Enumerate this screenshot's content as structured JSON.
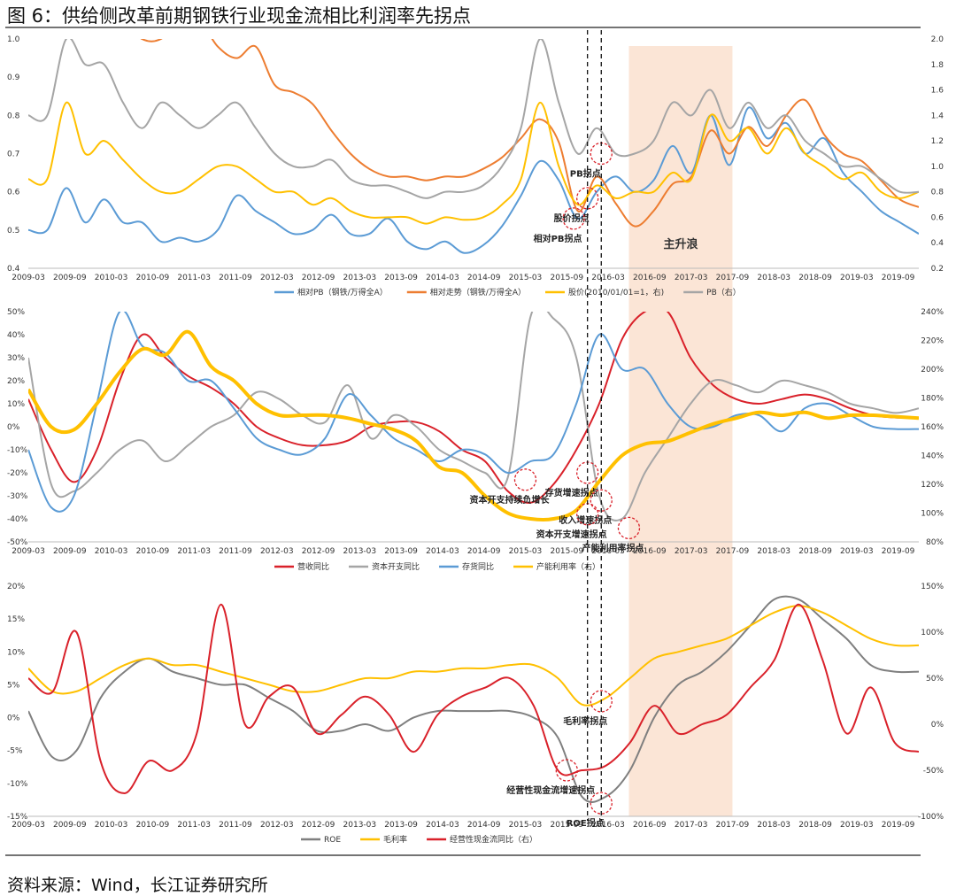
{
  "title": "图 6：供给侧改革前期钢铁行业现金流相比利润率先拐点",
  "source": "资料来源：Wind，长江证券研究所",
  "colors": {
    "blue": "#5B9BD5",
    "orange": "#ED7D31",
    "yellow": "#FFC000",
    "gray": "#A5A5A5",
    "red": "#D9212A",
    "darkgray": "#7F7F7F",
    "band": "#FBE5D6"
  },
  "x_ticks": [
    "2009-03",
    "2009-09",
    "2010-03",
    "2010-09",
    "2011-03",
    "2011-09",
    "2012-03",
    "2012-09",
    "2013-03",
    "2013-09",
    "2014-03",
    "2014-09",
    "2015-03",
    "2015-09",
    "2016-03",
    "2016-09",
    "2017-03",
    "2017-09",
    "2018-03",
    "2018-09",
    "2019-03",
    "2019-09"
  ],
  "highlight": {
    "label": "主升浪",
    "from": "2016-06",
    "to": "2017-09"
  },
  "vlines": [
    "2015-12",
    "2016-02"
  ],
  "chart_data": [
    {
      "type": "line",
      "ylim": [
        0.4,
        1.0
      ],
      "y2lim": [
        0.2,
        2.0
      ],
      "yticks": [
        "1.0",
        "0.9",
        "0.8",
        "0.7",
        "0.6",
        "0.5",
        "0.4"
      ],
      "y2ticks": [
        "2.0",
        "1.8",
        "1.6",
        "1.4",
        "1.2",
        "1.0",
        "0.8",
        "0.6",
        "0.4",
        "0.2"
      ],
      "series": [
        {
          "name": "相对PB（钢铁/万得全A）",
          "color": "blue",
          "axis": "left",
          "values": [
            0.5,
            0.5,
            0.61,
            0.52,
            0.58,
            0.52,
            0.52,
            0.47,
            0.48,
            0.47,
            0.5,
            0.59,
            0.55,
            0.52,
            0.49,
            0.5,
            0.54,
            0.49,
            0.49,
            0.53,
            0.47,
            0.45,
            0.47,
            0.44,
            0.46,
            0.51,
            0.59,
            0.68,
            0.63,
            0.53,
            0.6,
            0.64,
            0.6,
            0.63,
            0.72,
            0.65,
            0.8,
            0.67,
            0.82,
            0.74,
            0.78,
            0.7,
            0.74,
            0.65,
            0.6,
            0.55,
            0.52,
            0.49
          ]
        },
        {
          "name": "相对走势（钢铁/万得全A）",
          "color": "orange",
          "axis": "left",
          "values": [
            1.05,
            1.05,
            1.05,
            1.05,
            1.05,
            1.05,
            1.0,
            1.0,
            1.05,
            1.05,
            0.98,
            0.95,
            0.98,
            0.88,
            0.86,
            0.83,
            0.76,
            0.7,
            0.66,
            0.64,
            0.64,
            0.63,
            0.64,
            0.64,
            0.66,
            0.69,
            0.74,
            0.79,
            0.73,
            0.55,
            0.64,
            0.57,
            0.51,
            0.55,
            0.62,
            0.64,
            0.76,
            0.7,
            0.77,
            0.72,
            0.8,
            0.84,
            0.75,
            0.7,
            0.68,
            0.63,
            0.58,
            0.56
          ]
        },
        {
          "name": "股价(2010/01/01=1，右)",
          "color": "yellow",
          "axis": "right",
          "values": [
            0.9,
            0.9,
            1.5,
            1.1,
            1.2,
            1.05,
            0.9,
            0.8,
            0.8,
            0.9,
            1.0,
            1.0,
            0.9,
            0.8,
            0.8,
            0.7,
            0.75,
            0.65,
            0.6,
            0.6,
            0.6,
            0.55,
            0.6,
            0.58,
            0.6,
            0.7,
            0.9,
            1.5,
            1.0,
            0.7,
            0.85,
            0.75,
            0.8,
            0.8,
            0.95,
            0.9,
            1.4,
            1.2,
            1.3,
            1.1,
            1.3,
            1.1,
            1.0,
            0.9,
            0.95,
            0.8,
            0.75,
            0.8
          ]
        },
        {
          "name": "PB（右）",
          "color": "gray",
          "axis": "right",
          "values": [
            1.4,
            1.4,
            2.0,
            1.8,
            1.8,
            1.5,
            1.3,
            1.5,
            1.4,
            1.3,
            1.4,
            1.5,
            1.3,
            1.1,
            1.0,
            1.0,
            1.05,
            0.9,
            0.85,
            0.85,
            0.8,
            0.75,
            0.8,
            0.8,
            0.85,
            1.0,
            1.3,
            2.0,
            1.5,
            1.1,
            1.3,
            1.1,
            1.1,
            1.2,
            1.5,
            1.4,
            1.6,
            1.3,
            1.5,
            1.3,
            1.4,
            1.2,
            1.1,
            1.0,
            1.0,
            0.9,
            0.8,
            0.8
          ]
        }
      ],
      "annotations": [
        {
          "text": "PB拐点",
          "x": "2016-02",
          "y": 1.1,
          "axis": "right"
        },
        {
          "text": "股价拐点",
          "x": "2015-12",
          "y": 0.75,
          "axis": "right"
        },
        {
          "text": "相对PB拐点",
          "x": "2015-10",
          "y": 0.53,
          "axis": "left"
        }
      ]
    },
    {
      "type": "line",
      "ylim": [
        -50,
        50
      ],
      "y2lim": [
        80,
        240
      ],
      "yticks": [
        "50%",
        "40%",
        "30%",
        "20%",
        "10%",
        "0%",
        "-10%",
        "-20%",
        "-30%",
        "-40%",
        "-50%"
      ],
      "y2ticks": [
        "240%",
        "220%",
        "200%",
        "180%",
        "160%",
        "140%",
        "120%",
        "100%",
        "80%"
      ],
      "series": [
        {
          "name": "营收同比",
          "color": "red",
          "axis": "left",
          "values": [
            12,
            -10,
            -24,
            -10,
            20,
            40,
            30,
            22,
            17,
            10,
            0,
            -5,
            -8,
            -8,
            -6,
            0,
            2,
            2,
            -2,
            -10,
            -15,
            -28,
            -33,
            -25,
            -10,
            10,
            38,
            50,
            50,
            30,
            18,
            12,
            10,
            12,
            14,
            12,
            8,
            5,
            4,
            4
          ]
        },
        {
          "name": "资本开支同比",
          "color": "gray",
          "axis": "left",
          "values": [
            30,
            -25,
            -28,
            -20,
            -10,
            -6,
            -15,
            -8,
            0,
            5,
            15,
            12,
            5,
            2,
            18,
            -5,
            5,
            0,
            -10,
            -15,
            -20,
            -22,
            48,
            47,
            30,
            -30,
            -40,
            -20,
            -5,
            10,
            20,
            18,
            15,
            20,
            18,
            15,
            10,
            8,
            6,
            8
          ]
        },
        {
          "name": "存货同比",
          "color": "blue",
          "axis": "left",
          "values": [
            -10,
            -35,
            -30,
            10,
            50,
            35,
            32,
            20,
            20,
            8,
            -5,
            -10,
            -12,
            -5,
            14,
            5,
            -5,
            -10,
            -15,
            -10,
            -12,
            -20,
            -15,
            -12,
            10,
            40,
            25,
            25,
            10,
            0,
            0,
            5,
            5,
            -2,
            8,
            10,
            5,
            0,
            -1,
            -1
          ]
        },
        {
          "name": "产能利用率（右）",
          "color": "yellow",
          "axis": "right",
          "values": [
            186,
            160,
            158,
            176,
            198,
            214,
            210,
            226,
            202,
            192,
            176,
            168,
            168,
            168,
            166,
            162,
            158,
            150,
            132,
            128,
            112,
            100,
            96,
            96,
            102,
            122,
            140,
            148,
            150,
            156,
            162,
            166,
            170,
            168,
            170,
            166,
            168,
            168,
            167,
            166
          ]
        }
      ],
      "annotations": [
        {
          "text": "资本开支持续负增长",
          "x": "2015-03",
          "y": -23,
          "axis": "left"
        },
        {
          "text": "存货增速拐点",
          "x": "2015-12",
          "y": -20,
          "axis": "left"
        },
        {
          "text": "收入增速拐点",
          "x": "2016-02",
          "y": -32,
          "axis": "left"
        },
        {
          "text": "资本开支增速拐点",
          "x": "2015-12",
          "y": -38,
          "axis": "left"
        },
        {
          "text": "产能利用率拐点",
          "x": "2016-06",
          "y": -44,
          "axis": "left"
        }
      ]
    },
    {
      "type": "line",
      "ylim": [
        -15,
        20
      ],
      "y2lim": [
        -100,
        150
      ],
      "yticks": [
        "20%",
        "15%",
        "10%",
        "5%",
        "0%",
        "-5%",
        "-10%",
        "-15%"
      ],
      "y2ticks": [
        "150%",
        "100%",
        "50%",
        "0%",
        "-50%",
        "-100%"
      ],
      "series": [
        {
          "name": "ROE",
          "color": "darkgray",
          "axis": "left",
          "values": [
            1,
            -6,
            -5,
            3,
            7,
            9,
            7,
            6,
            5,
            5,
            3,
            1,
            -2,
            -2,
            -1,
            -2,
            0,
            1,
            1,
            1,
            1,
            0,
            -3,
            -12,
            -12,
            -8,
            0,
            5,
            7,
            10,
            14,
            18,
            18,
            15,
            12,
            8,
            7,
            7
          ]
        },
        {
          "name": "毛利率",
          "color": "yellow",
          "axis": "left",
          "values": [
            7.5,
            4,
            4,
            6,
            8,
            9,
            8,
            8,
            7,
            6,
            5,
            4,
            4,
            5,
            6,
            6,
            7,
            7,
            7.5,
            7.5,
            8,
            8,
            6,
            2,
            3,
            6,
            9,
            10,
            11,
            12,
            14,
            16,
            17,
            16,
            14,
            12,
            11,
            11
          ]
        },
        {
          "name": "经营性现金流同比（右）",
          "color": "red",
          "axis": "right",
          "values": [
            50,
            35,
            100,
            -40,
            -75,
            -40,
            -50,
            -10,
            130,
            0,
            30,
            40,
            -10,
            10,
            30,
            10,
            -30,
            10,
            30,
            40,
            50,
            20,
            -50,
            -50,
            -45,
            -20,
            20,
            -10,
            0,
            10,
            40,
            70,
            130,
            70,
            -10,
            40,
            -20,
            -30
          ]
        }
      ],
      "annotations": [
        {
          "text": "毛利率拐点",
          "x": "2016-02",
          "y": 2.5,
          "axis": "left"
        },
        {
          "text": "经营性现金流增速拐点",
          "x": "2015-09",
          "y": -50,
          "axis": "right"
        },
        {
          "text": "ROE拐点",
          "x": "2016-02",
          "y": -13,
          "axis": "left"
        }
      ]
    }
  ]
}
